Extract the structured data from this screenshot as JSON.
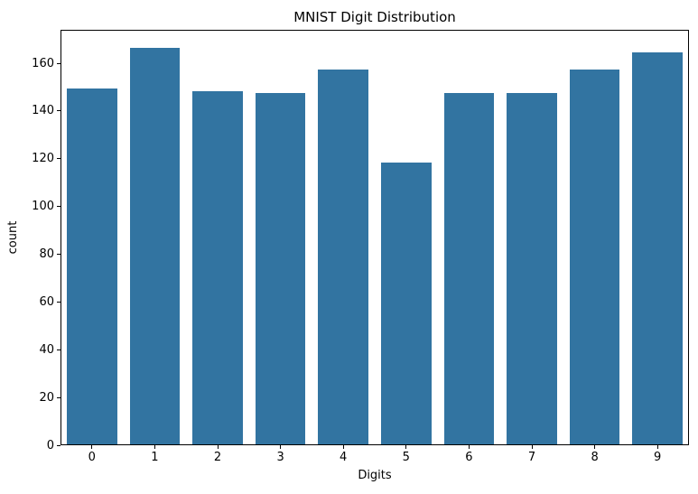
{
  "chart_data": {
    "type": "bar",
    "title": "MNIST Digit Distribution",
    "xlabel": "Digits",
    "ylabel": "count",
    "categories": [
      "0",
      "1",
      "2",
      "3",
      "4",
      "5",
      "6",
      "7",
      "8",
      "9"
    ],
    "values": [
      149,
      166,
      148,
      147,
      157,
      118,
      147,
      147,
      157,
      164
    ],
    "yticks": [
      0,
      20,
      40,
      60,
      80,
      100,
      120,
      140,
      160
    ],
    "ylim": [
      0,
      174
    ],
    "bar_color": "#3274A1",
    "bar_width_ratio": 0.8,
    "grid": false,
    "legend": "none",
    "frame": "full-box"
  }
}
